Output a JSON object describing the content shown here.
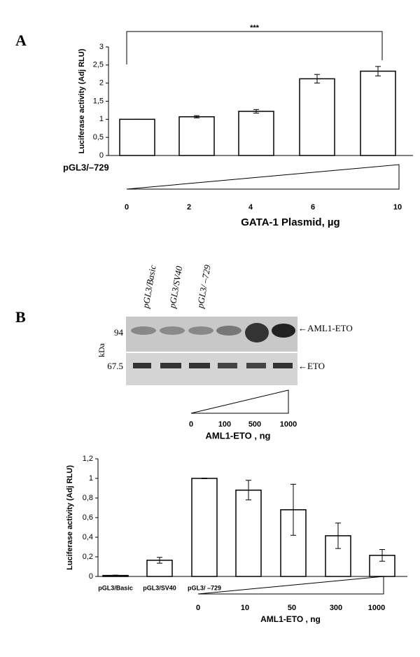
{
  "panel_labels": [
    "A",
    "B"
  ],
  "chart_data": [
    {
      "type": "bar",
      "ylabel": "Luciferase activity (Adj RLU)",
      "construct_label": "pGL3/–729",
      "categories": [
        "0",
        "2",
        "4",
        "6",
        "10"
      ],
      "xlabel": "GATA-1 Plasmid, µg",
      "values": [
        1,
        1.07,
        1.22,
        2.12,
        2.33
      ],
      "errors": [
        0,
        0.03,
        0.05,
        0.12,
        0.13
      ],
      "significance": "***",
      "color": "#ffffff",
      "ylim": [
        0,
        3
      ],
      "yticks": [
        0,
        {
          "value": 0.5,
          "label": "0,5"
        },
        1,
        {
          "value": 1.5,
          "label": "1,5"
        },
        2,
        {
          "value": 2.5,
          "label": "2,5"
        },
        3
      ]
    },
    {
      "type": "bar",
      "ylabel": "Luciferase activity (Adj RLU)",
      "categories": [
        "pGL3/Basic",
        "pGL3/SV40",
        "pGL3/ –729",
        null,
        null,
        null,
        null
      ],
      "doses": [
        "0",
        "10",
        "50",
        "300",
        "1000"
      ],
      "xlabel": "AML1-ETO , ng",
      "values": [
        0.01,
        0.165,
        1.0,
        0.88,
        0.68,
        0.415,
        0.215
      ],
      "errors": [
        0.003,
        0.03,
        0.003,
        0.1,
        0.26,
        0.13,
        0.06
      ],
      "color": "#ffffff",
      "ylim": [
        0,
        1.2
      ],
      "yticks": [
        0,
        {
          "value": 0.2,
          "label": "0,2"
        },
        {
          "value": 0.4,
          "label": "0,4"
        },
        {
          "value": 0.6,
          "label": "0,6"
        },
        {
          "value": 0.8,
          "label": "0,8"
        },
        1,
        {
          "value": 1.2,
          "label": "1,2"
        }
      ]
    }
  ],
  "blot": {
    "lane_labels": [
      "pGL3/Basic",
      "pGL3/SV40",
      "pGL3/ –729"
    ],
    "markers": [
      "94",
      "67.5"
    ],
    "marker_unit": "kDa",
    "band_labels": [
      "←AML1-ETO",
      "←ETO"
    ],
    "doses": [
      "0",
      "100",
      "500",
      "1000"
    ],
    "xlabel": "AML1-ETO , ng"
  }
}
